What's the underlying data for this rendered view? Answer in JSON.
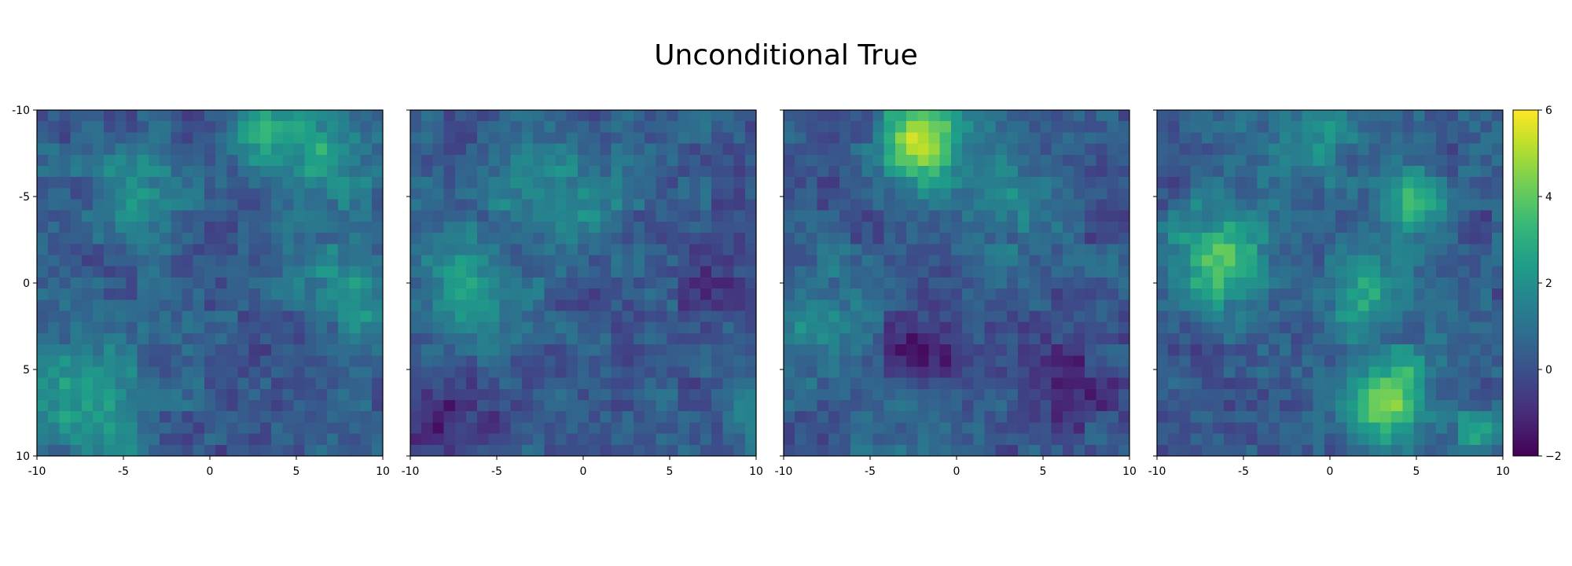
{
  "title": "Unconditional True",
  "colormap": "viridis",
  "chart_data": [
    {
      "type": "heatmap",
      "panel": 1,
      "grid_size": 31,
      "xlim": [
        -10,
        10
      ],
      "ylim": [
        10,
        -10
      ],
      "x_ticks": [
        -10,
        -5,
        0,
        5,
        10
      ],
      "y_ticks": [
        -10,
        -5,
        0,
        5,
        10
      ],
      "y_tick_labels_shown": true,
      "blobs": [
        {
          "x": 3.5,
          "y": -9,
          "amp": 2.2,
          "sigma": 1.8
        },
        {
          "x": 7,
          "y": -7.5,
          "amp": 2.0,
          "sigma": 2.0
        },
        {
          "x": -4.5,
          "y": -5,
          "amp": 2.0,
          "sigma": 1.8
        },
        {
          "x": 8.5,
          "y": 0.5,
          "amp": 2.4,
          "sigma": 1.8
        },
        {
          "x": -8,
          "y": 6,
          "amp": 1.8,
          "sigma": 2.5
        },
        {
          "x": -6,
          "y": 9,
          "amp": 1.6,
          "sigma": 2.0
        }
      ]
    },
    {
      "type": "heatmap",
      "panel": 2,
      "grid_size": 31,
      "xlim": [
        -10,
        10
      ],
      "ylim": [
        10,
        -10
      ],
      "x_ticks": [
        -10,
        -5,
        0,
        5,
        10
      ],
      "y_ticks": [
        -10,
        -5,
        0,
        5,
        10
      ],
      "y_tick_labels_shown": false,
      "blobs": [
        {
          "x": -7,
          "y": 1,
          "amp": 2.3,
          "sigma": 2.2
        },
        {
          "x": 0,
          "y": -5,
          "amp": 1.6,
          "sigma": 2.0
        },
        {
          "x": -4,
          "y": -6,
          "amp": 1.0,
          "sigma": 2.0
        },
        {
          "x": -8,
          "y": 8.5,
          "amp": -1.4,
          "sigma": 2.0
        },
        {
          "x": 8,
          "y": -1,
          "amp": -1.0,
          "sigma": 1.8
        },
        {
          "x": 10,
          "y": 8,
          "amp": 1.5,
          "sigma": 1.2
        }
      ]
    },
    {
      "type": "heatmap",
      "panel": 3,
      "grid_size": 31,
      "xlim": [
        -10,
        10
      ],
      "ylim": [
        10,
        -10
      ],
      "x_ticks": [
        -10,
        -5,
        0,
        5,
        10
      ],
      "y_ticks": [
        -10,
        -5,
        0,
        5,
        10
      ],
      "y_tick_labels_shown": false,
      "blobs": [
        {
          "x": -2,
          "y": -8.5,
          "amp": 4.8,
          "sigma": 1.8
        },
        {
          "x": 3,
          "y": -5,
          "amp": 1.6,
          "sigma": 2.0
        },
        {
          "x": -8,
          "y": 2.5,
          "amp": 1.4,
          "sigma": 2.2
        },
        {
          "x": -2,
          "y": 7.5,
          "amp": 1.2,
          "sigma": 1.8
        },
        {
          "x": -2,
          "y": 4,
          "amp": -1.5,
          "sigma": 2.0
        },
        {
          "x": 7,
          "y": 6,
          "amp": -1.2,
          "sigma": 2.0
        }
      ]
    },
    {
      "type": "heatmap",
      "panel": 4,
      "grid_size": 31,
      "xlim": [
        -10,
        10
      ],
      "ylim": [
        10,
        -10
      ],
      "x_ticks": [
        -10,
        -5,
        0,
        5,
        10
      ],
      "y_ticks": [
        -10,
        -5,
        0,
        5,
        10
      ],
      "y_tick_labels_shown": false,
      "blobs": [
        {
          "x": -6.5,
          "y": -1.5,
          "amp": 3.8,
          "sigma": 2.0
        },
        {
          "x": 5,
          "y": -5,
          "amp": 3.5,
          "sigma": 1.3
        },
        {
          "x": 3.5,
          "y": 7,
          "amp": 4.5,
          "sigma": 1.8
        },
        {
          "x": 2,
          "y": 0.5,
          "amp": 2.5,
          "sigma": 1.8
        },
        {
          "x": -1,
          "y": -8.5,
          "amp": 1.8,
          "sigma": 2.0
        },
        {
          "x": 9,
          "y": 9,
          "amp": 1.8,
          "sigma": 1.2
        }
      ]
    }
  ],
  "colorbar": {
    "min": -2,
    "max": 6,
    "ticks": [
      -2,
      0,
      2,
      4,
      6
    ]
  }
}
